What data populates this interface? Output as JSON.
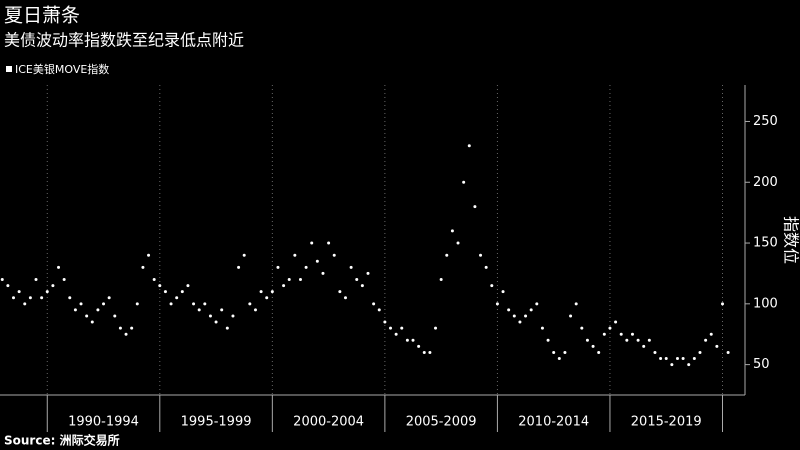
{
  "chart_data": {
    "type": "scatter",
    "title": "夏日萧条",
    "subtitle": "美债波动率指数跌至纪录低点附近",
    "y_label": "指数位",
    "source": "Source: 洲际交易所",
    "color": "#ffffff",
    "series": [
      {
        "name": "ICE美银MOVE指数",
        "color": "#ffffff",
        "x": [
          1988,
          1988.25,
          1988.5,
          1988.75,
          1989,
          1989.25,
          1989.5,
          1989.75,
          1990,
          1990.25,
          1990.5,
          1990.75,
          1991,
          1991.25,
          1991.5,
          1991.75,
          1992,
          1992.25,
          1992.5,
          1992.75,
          1993,
          1993.25,
          1993.5,
          1993.75,
          1994,
          1994.25,
          1994.5,
          1994.75,
          1995,
          1995.25,
          1995.5,
          1995.75,
          1996,
          1996.25,
          1996.5,
          1996.75,
          1997,
          1997.25,
          1997.5,
          1997.75,
          1998,
          1998.25,
          1998.5,
          1998.75,
          1999,
          1999.25,
          1999.5,
          1999.75,
          2000,
          2000.25,
          2000.5,
          2000.75,
          2001,
          2001.25,
          2001.5,
          2001.75,
          2002,
          2002.25,
          2002.5,
          2002.75,
          2003,
          2003.25,
          2003.5,
          2003.75,
          2004,
          2004.25,
          2004.5,
          2004.75,
          2005,
          2005.25,
          2005.5,
          2005.75,
          2006,
          2006.25,
          2006.5,
          2006.75,
          2007,
          2007.25,
          2007.5,
          2007.75,
          2008,
          2008.25,
          2008.5,
          2008.75,
          2009,
          2009.25,
          2009.5,
          2009.75,
          2010,
          2010.25,
          2010.5,
          2010.75,
          2011,
          2011.25,
          2011.5,
          2011.75,
          2012,
          2012.25,
          2012.5,
          2012.75,
          2013,
          2013.25,
          2013.5,
          2013.75,
          2014,
          2014.25,
          2014.5,
          2014.75,
          2015,
          2015.25,
          2015.5,
          2015.75,
          2016,
          2016.25,
          2016.5,
          2016.75,
          2017,
          2017.25,
          2017.5,
          2017.75,
          2018,
          2018.25,
          2018.5,
          2018.75,
          2019,
          2019.25,
          2019.5,
          2019.75,
          2020,
          2020.25
        ],
        "values": [
          120,
          115,
          105,
          110,
          100,
          105,
          120,
          105,
          110,
          115,
          130,
          120,
          105,
          95,
          100,
          90,
          85,
          95,
          100,
          105,
          90,
          80,
          75,
          80,
          100,
          130,
          140,
          120,
          115,
          110,
          100,
          105,
          110,
          115,
          100,
          95,
          100,
          90,
          85,
          95,
          80,
          90,
          130,
          140,
          100,
          95,
          110,
          105,
          110,
          130,
          115,
          120,
          140,
          120,
          130,
          150,
          135,
          125,
          150,
          140,
          110,
          105,
          130,
          120,
          115,
          125,
          100,
          95,
          85,
          80,
          75,
          80,
          70,
          70,
          65,
          60,
          60,
          80,
          120,
          140,
          160,
          150,
          200,
          230,
          180,
          140,
          130,
          115,
          100,
          110,
          95,
          90,
          85,
          90,
          95,
          100,
          80,
          70,
          60,
          55,
          60,
          90,
          100,
          80,
          70,
          65,
          60,
          75,
          80,
          85,
          75,
          70,
          75,
          70,
          65,
          70,
          60,
          55,
          55,
          50,
          55,
          55,
          50,
          55,
          60,
          70,
          75,
          65,
          100,
          60
        ]
      }
    ],
    "xlim": [
      1987.9,
      2021
    ],
    "xbands": [
      {
        "label": "1990-1994",
        "from": 1990,
        "to": 1995
      },
      {
        "label": "1995-1999",
        "from": 1995,
        "to": 2000
      },
      {
        "label": "2000-2004",
        "from": 2000,
        "to": 2005
      },
      {
        "label": "2005-2009",
        "from": 2005,
        "to": 2010
      },
      {
        "label": "2010-2014",
        "from": 2010,
        "to": 2015
      },
      {
        "label": "2015-2019",
        "from": 2015,
        "to": 2020
      }
    ],
    "ylim": [
      25,
      280
    ],
    "yticks": [
      50,
      100,
      150,
      200,
      250
    ],
    "grid": true
  }
}
